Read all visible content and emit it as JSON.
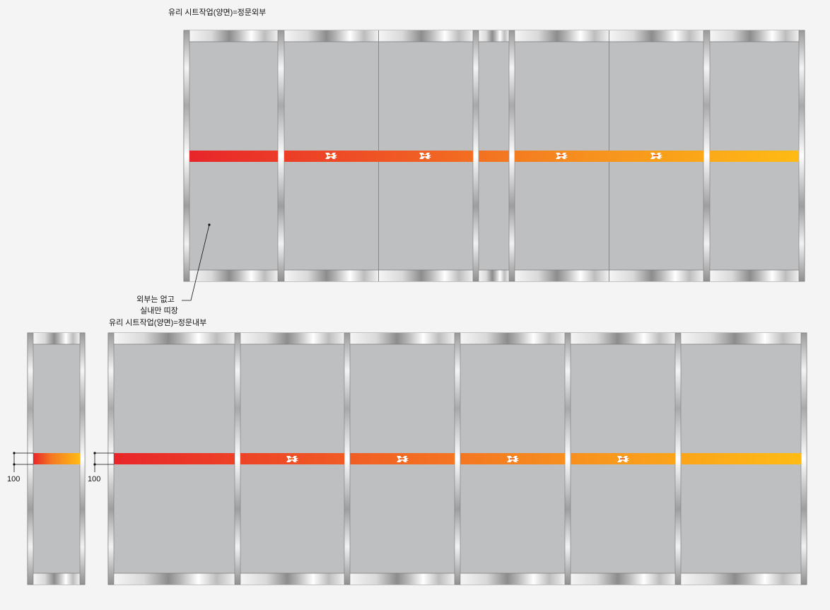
{
  "top_elevation": {
    "title": "유리 시트작업(양면)=정문외부",
    "logo_count": 4
  },
  "bottom_elevation": {
    "title": "유리 시트작업(양면)=정문내부",
    "logo_count": 4
  },
  "callout": {
    "line1": "외부는 없고",
    "line2": "실내만 띠장"
  },
  "dimensions": {
    "left_small": "100",
    "left_main": "100"
  },
  "colors": {
    "background": "#f4f4f4",
    "glass": "#bebfc1",
    "stripe_start": "#e8252a",
    "stripe_mid": "#f36f24",
    "stripe_end": "#ffbb14",
    "frame_dark": "#8a8a8a",
    "frame_light": "#f2f2f2"
  }
}
